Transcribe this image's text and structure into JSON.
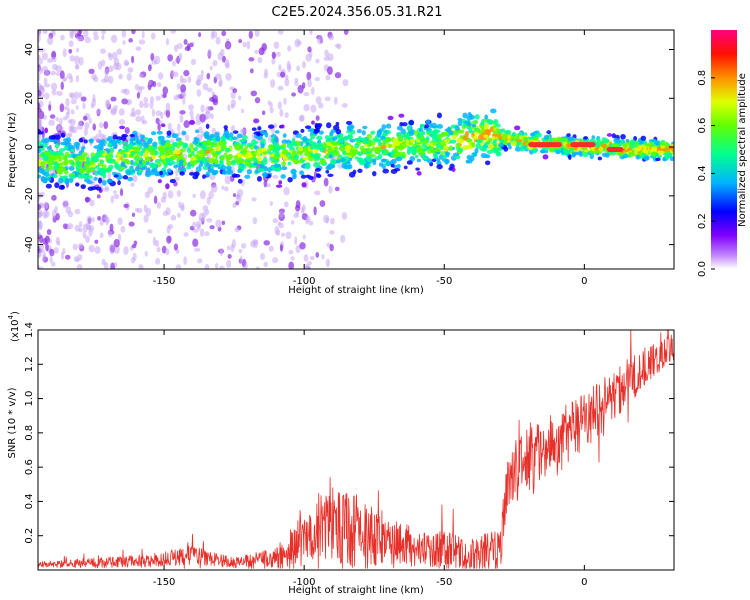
{
  "title": "C2E5.2024.356.05.31.R21",
  "chart_data": [
    {
      "type": "heatmap",
      "xlabel": "Height of straight line (km)",
      "ylabel": "Frequency (Hz)",
      "xlim": [
        -195,
        32
      ],
      "ylim": [
        -50,
        48
      ],
      "xticks": [
        -150,
        -100,
        -50,
        0
      ],
      "yticks": [
        -40,
        -20,
        0,
        20,
        40
      ],
      "colorbar": {
        "label": "Normalized spectral amplitude",
        "range": [
          0,
          1
        ],
        "ticks": [
          "0.0",
          "0.2",
          "0.4",
          "0.6",
          "0.8"
        ],
        "colormap": [
          "#ffffff",
          "#8000ff",
          "#0000ff",
          "#00c8ff",
          "#00ff80",
          "#80ff00",
          "#ffff00",
          "#ff8000",
          "#ff0000",
          "#ff0080"
        ]
      },
      "ridge": {
        "x": [
          -195,
          -180,
          -165,
          -150,
          -135,
          -120,
          -105,
          -90,
          -75,
          -60,
          -50,
          -45,
          -40,
          -35,
          -30,
          -25,
          -20,
          -10,
          0,
          10,
          20,
          32
        ],
        "y": [
          -5,
          -7,
          -4,
          -3,
          -2,
          -3,
          -3,
          -1,
          0,
          1,
          2,
          3,
          4,
          5,
          4,
          3,
          2,
          1,
          0,
          0,
          -1,
          -1
        ]
      },
      "hot_segments": [
        {
          "x0": -20,
          "x1": -8,
          "y": 1
        },
        {
          "x0": -5,
          "x1": 4,
          "y": 1
        },
        {
          "x0": 8,
          "x1": 14,
          "y": -1
        }
      ]
    },
    {
      "type": "line",
      "xlabel": "Height of straight line (km)",
      "ylabel": "SNR (10 * v/v)",
      "y_scale_note": "(x10",
      "y_scale_exp": "4",
      "xlim": [
        -195,
        32
      ],
      "ylim": [
        0,
        1.4
      ],
      "xticks": [
        -150,
        -100,
        -50,
        0
      ],
      "yticks": [
        "0.2",
        "0.4",
        "0.6",
        "0.8",
        "1.0",
        "1.2",
        "1.4"
      ],
      "color": "#e8302a",
      "envelope": {
        "x": [
          -195,
          -170,
          -155,
          -140,
          -125,
          -110,
          -100,
          -90,
          -80,
          -70,
          -60,
          -50,
          -40,
          -30,
          -28,
          -25,
          -20,
          -15,
          -10,
          -5,
          0,
          5,
          10,
          15,
          20,
          25,
          32
        ],
        "base": [
          0.03,
          0.04,
          0.05,
          0.08,
          0.04,
          0.06,
          0.15,
          0.25,
          0.18,
          0.14,
          0.12,
          0.1,
          0.08,
          0.1,
          0.42,
          0.55,
          0.62,
          0.66,
          0.7,
          0.78,
          0.85,
          0.92,
          1.0,
          1.07,
          1.15,
          1.22,
          1.3
        ],
        "amp": [
          0.02,
          0.04,
          0.05,
          0.07,
          0.04,
          0.08,
          0.22,
          0.35,
          0.28,
          0.18,
          0.15,
          0.14,
          0.13,
          0.16,
          0.2,
          0.25,
          0.28,
          0.25,
          0.22,
          0.22,
          0.2,
          0.2,
          0.18,
          0.18,
          0.15,
          0.12,
          0.1
        ]
      }
    }
  ]
}
